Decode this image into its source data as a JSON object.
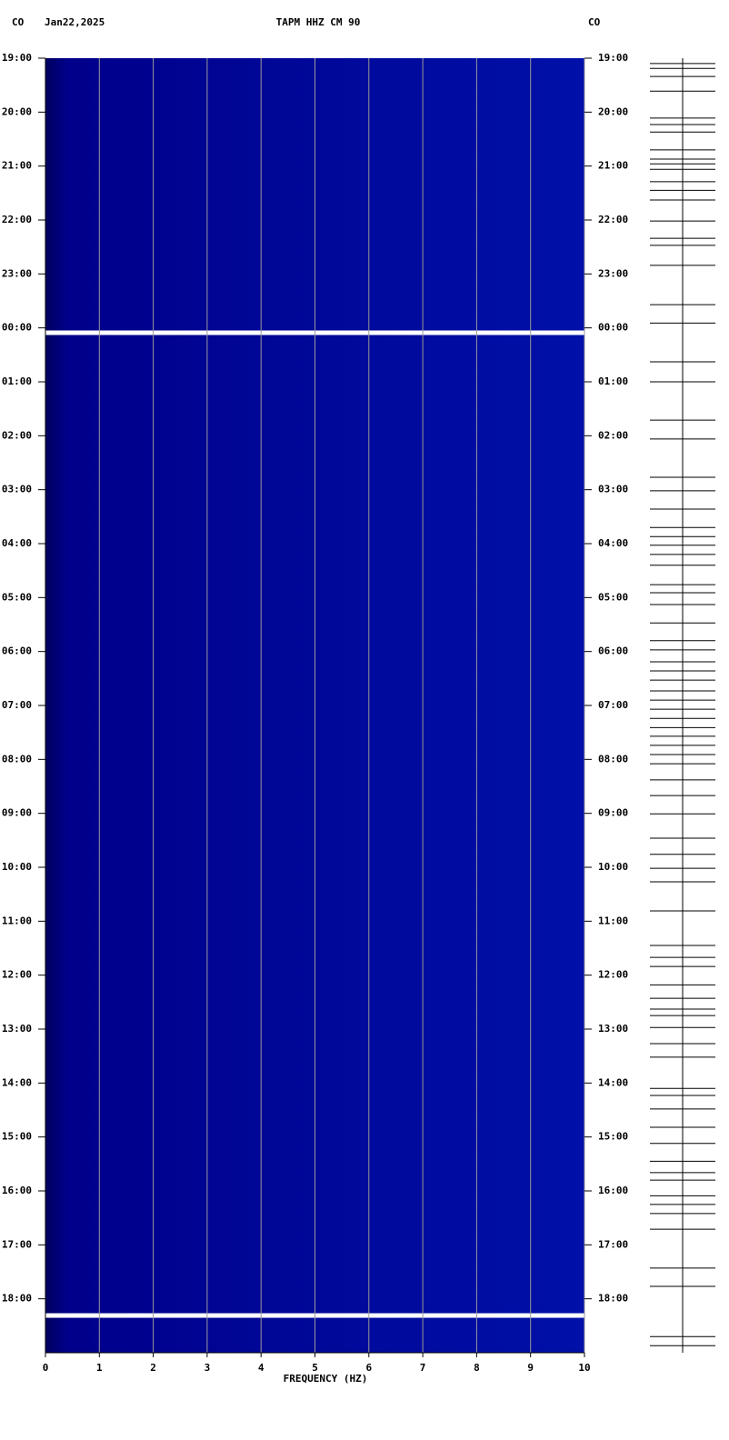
{
  "chart_data": {
    "type": "spectrogram",
    "header_left": "CO",
    "date": "Jan22,2025",
    "title": "TAPM HHZ CM 90",
    "header_right": "CO",
    "xlabel": "FREQUENCY (HZ)",
    "xlim": [
      0,
      10
    ],
    "xticks": [
      0,
      1,
      2,
      3,
      4,
      5,
      6,
      7,
      8,
      9,
      10
    ],
    "ylim": [
      0,
      24
    ],
    "yticks": [
      {
        "value": 0,
        "label": "19:00"
      },
      {
        "value": 1,
        "label": "20:00"
      },
      {
        "value": 2,
        "label": "21:00"
      },
      {
        "value": 3,
        "label": "22:00"
      },
      {
        "value": 4,
        "label": "23:00"
      },
      {
        "value": 5,
        "label": "00:00"
      },
      {
        "value": 6,
        "label": "01:00"
      },
      {
        "value": 7,
        "label": "02:00"
      },
      {
        "value": 8,
        "label": "03:00"
      },
      {
        "value": 9,
        "label": "04:00"
      },
      {
        "value": 10,
        "label": "05:00"
      },
      {
        "value": 11,
        "label": "06:00"
      },
      {
        "value": 12,
        "label": "07:00"
      },
      {
        "value": 13,
        "label": "08:00"
      },
      {
        "value": 14,
        "label": "09:00"
      },
      {
        "value": 15,
        "label": "10:00"
      },
      {
        "value": 16,
        "label": "11:00"
      },
      {
        "value": 17,
        "label": "12:00"
      },
      {
        "value": 18,
        "label": "13:00"
      },
      {
        "value": 19,
        "label": "14:00"
      },
      {
        "value": 20,
        "label": "15:00"
      },
      {
        "value": 21,
        "label": "16:00"
      },
      {
        "value": 22,
        "label": "17:00"
      },
      {
        "value": 23,
        "label": "18:00"
      }
    ],
    "grid": true,
    "events": [
      0.1,
      0.19,
      0.34,
      0.61,
      1.11,
      1.23,
      1.37,
      1.7,
      1.87,
      1.96,
      2.06,
      2.29,
      2.45,
      2.63,
      3.02,
      3.34,
      3.47,
      3.84,
      4.57,
      4.91,
      5.63,
      6.0,
      6.71,
      7.06,
      7.77,
      8.02,
      8.36,
      8.7,
      8.87,
      9.03,
      9.2,
      9.4,
      9.76,
      9.91,
      10.13,
      10.47,
      10.8,
      10.97,
      11.19,
      11.36,
      11.53,
      11.73,
      11.9,
      12.07,
      12.24,
      12.41,
      12.57,
      12.74,
      12.91,
      13.08,
      13.38,
      13.67,
      14.01,
      14.46,
      14.76,
      15.02,
      15.27,
      15.81,
      16.45,
      16.67,
      16.84,
      17.18,
      17.43,
      17.63,
      17.75,
      17.97,
      18.27,
      18.52,
      19.1,
      19.23,
      19.48,
      19.82,
      20.12,
      20.45,
      20.66,
      20.8,
      21.09,
      21.25,
      21.42,
      21.71,
      22.43,
      22.77,
      23.7,
      23.87
    ],
    "gaps": [
      5.09,
      23.31
    ]
  }
}
